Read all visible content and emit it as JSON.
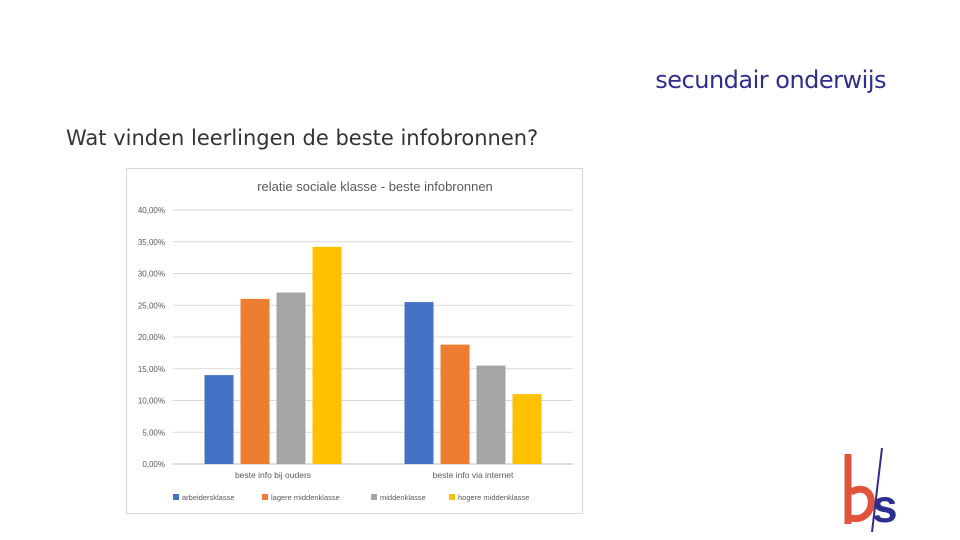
{
  "slide": {
    "heading": "secundair onderwijs",
    "question": "Wat vinden leerlingen de beste infobronnen?"
  },
  "logo": {
    "text": "bs",
    "colors": {
      "b": "#e0533d",
      "s": "#2e2e8f"
    }
  },
  "chart_data": {
    "type": "bar",
    "title": "relatie sociale klasse - beste infobronnen",
    "categories": [
      "beste info bij ouders",
      "beste info via internet"
    ],
    "series": [
      {
        "name": "arbeidersklasse",
        "color": "#4472c4",
        "values": [
          14.0,
          25.5
        ]
      },
      {
        "name": "lagere middenklasse",
        "color": "#ed7d31",
        "values": [
          26.0,
          18.8
        ]
      },
      {
        "name": "middenklasse",
        "color": "#a5a5a5",
        "values": [
          27.0,
          15.5
        ]
      },
      {
        "name": "hogere middenklasse",
        "color": "#ffc000",
        "values": [
          34.2,
          11.0
        ]
      }
    ],
    "ylim": [
      0,
      40
    ],
    "yticks": [
      "0,00%",
      "5,00%",
      "10,00%",
      "15,00%",
      "20,00%",
      "25,00%",
      "30,00%",
      "35,00%",
      "40,00%"
    ],
    "grid": true,
    "legend": "bottom"
  }
}
